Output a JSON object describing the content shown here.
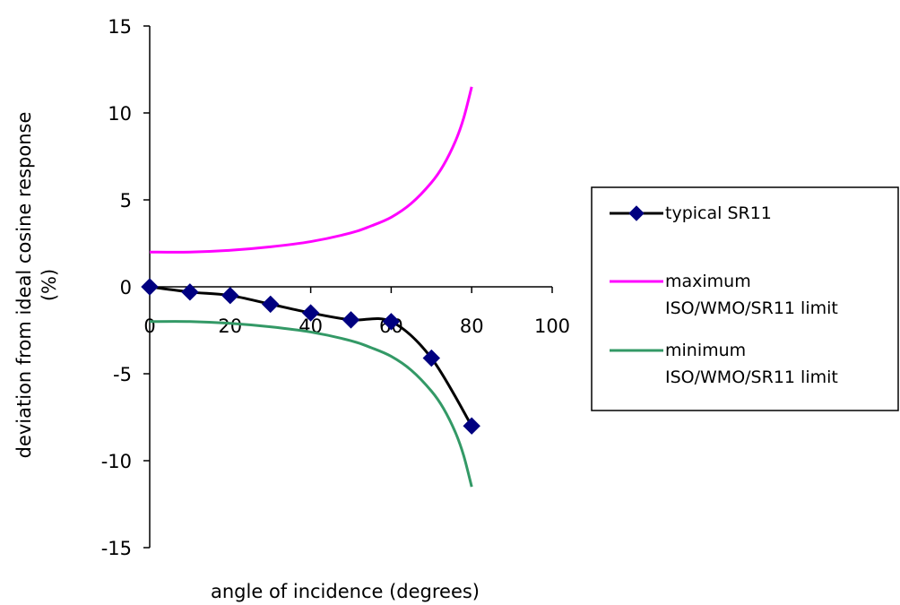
{
  "chart_data": {
    "type": "line",
    "title": "",
    "xlabel": "angle of incidence (degrees)",
    "ylabel_lines": [
      "deviation from ideal cosine response",
      "(%)"
    ],
    "xlim": [
      0,
      100
    ],
    "ylim": [
      -15,
      15
    ],
    "x_ticks": [
      0,
      20,
      40,
      60,
      80,
      100
    ],
    "y_ticks": [
      15,
      10,
      5,
      0,
      -5,
      -10,
      -15
    ],
    "grid": false,
    "legend_position": "right",
    "series": [
      {
        "name": "typical SR11",
        "color": "#000000",
        "marker": "diamond",
        "marker_color": "#000080",
        "points": [
          [
            0,
            0
          ],
          [
            10,
            -0.3
          ],
          [
            20,
            -0.5
          ],
          [
            30,
            -1.0
          ],
          [
            40,
            -1.5
          ],
          [
            50,
            -1.9
          ],
          [
            60,
            -2.0
          ],
          [
            70,
            -4.1
          ],
          [
            80,
            -8.0
          ]
        ]
      },
      {
        "name": "maximum\nISO/WMO/SR11 limit",
        "color": "#ff00ff",
        "marker": "none",
        "points": [
          [
            0,
            2.0
          ],
          [
            10,
            2.0
          ],
          [
            20,
            2.1
          ],
          [
            30,
            2.3
          ],
          [
            40,
            2.6
          ],
          [
            50,
            3.1
          ],
          [
            55,
            3.5
          ],
          [
            60,
            4.0
          ],
          [
            65,
            4.8
          ],
          [
            70,
            6.0
          ],
          [
            73,
            7.0
          ],
          [
            76,
            8.4
          ],
          [
            78,
            9.7
          ],
          [
            80,
            11.5
          ]
        ]
      },
      {
        "name": "minimum\nISO/WMO/SR11 limit",
        "color": "#339966",
        "marker": "none",
        "points": [
          [
            0,
            -2.0
          ],
          [
            10,
            -2.0
          ],
          [
            20,
            -2.1
          ],
          [
            30,
            -2.3
          ],
          [
            40,
            -2.6
          ],
          [
            50,
            -3.1
          ],
          [
            55,
            -3.5
          ],
          [
            60,
            -4.0
          ],
          [
            65,
            -4.8
          ],
          [
            70,
            -6.0
          ],
          [
            73,
            -7.0
          ],
          [
            76,
            -8.4
          ],
          [
            78,
            -9.7
          ],
          [
            80,
            -11.5
          ]
        ]
      }
    ]
  }
}
